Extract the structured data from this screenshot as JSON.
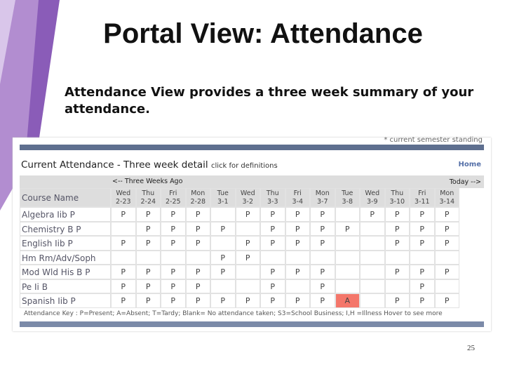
{
  "title": "Portal View: Attendance",
  "subtitle": "Attendance View provides a three week summary of your attendance.",
  "note": "* current semester standing",
  "panel": {
    "title": "Current Attendance - Three week detail",
    "link": "click for definitions",
    "home": "Home",
    "nav_left": "<-- Three Weeks Ago",
    "nav_right": "Today -->"
  },
  "table": {
    "header": "Course Name",
    "columns": [
      {
        "day": "Wed",
        "date": "2-23"
      },
      {
        "day": "Thu",
        "date": "2-24"
      },
      {
        "day": "Fri",
        "date": "2-25"
      },
      {
        "day": "Mon",
        "date": "2-28"
      },
      {
        "day": "Tue",
        "date": "3-1"
      },
      {
        "day": "Wed",
        "date": "3-2"
      },
      {
        "day": "Thu",
        "date": "3-3"
      },
      {
        "day": "Fri",
        "date": "3-4"
      },
      {
        "day": "Mon",
        "date": "3-7"
      },
      {
        "day": "Tue",
        "date": "3-8"
      },
      {
        "day": "Wed",
        "date": "3-9"
      },
      {
        "day": "Thu",
        "date": "3-10"
      },
      {
        "day": "Fri",
        "date": "3-11"
      },
      {
        "day": "Mon",
        "date": "3-14"
      }
    ],
    "rows": [
      {
        "course": "Algebra Iib P",
        "cells": [
          "P",
          "P",
          "P",
          "P",
          null,
          "P",
          "P",
          "P",
          "P",
          null,
          "P",
          "P",
          "P",
          "P"
        ]
      },
      {
        "course": "Chemistry B P",
        "cells": [
          null,
          "P",
          "P",
          "P",
          "P",
          null,
          "P",
          "P",
          "P",
          "P",
          null,
          "P",
          "P",
          "P"
        ]
      },
      {
        "course": "English Iib P",
        "cells": [
          "P",
          "P",
          "P",
          "P",
          null,
          "P",
          "P",
          "P",
          "P",
          null,
          null,
          "P",
          "P",
          "P"
        ]
      },
      {
        "course": "Hm Rm/Adv/Soph",
        "cells": [
          null,
          null,
          null,
          null,
          "P",
          "P",
          null,
          null,
          null,
          null,
          null,
          null,
          null,
          null
        ]
      },
      {
        "course": "Mod Wld His B P",
        "cells": [
          "P",
          "P",
          "P",
          "P",
          "P",
          null,
          "P",
          "P",
          "P",
          null,
          null,
          "P",
          "P",
          "P"
        ]
      },
      {
        "course": "Pe Ii B",
        "cells": [
          "P",
          "P",
          "P",
          "P",
          null,
          null,
          "P",
          null,
          "P",
          null,
          null,
          null,
          "P",
          null
        ]
      },
      {
        "course": "Spanish Iib P",
        "cells": [
          "P",
          "P",
          "P",
          "P",
          "P",
          "P",
          "P",
          "P",
          "P",
          "A",
          null,
          "P",
          "P",
          "P"
        ]
      }
    ],
    "cell_colors": {
      "A": "#f4766a"
    }
  },
  "key": "Attendance Key : P=Present; A=Absent; T=Tardy; Blank= No attendance taken; S3=School Business; I,H =Illness   Hover to see more",
  "page_number": "25"
}
